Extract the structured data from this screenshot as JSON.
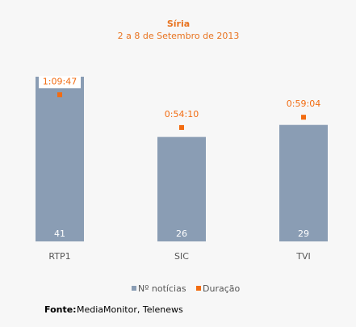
{
  "chart_data": {
    "type": "bar",
    "title": "Síria",
    "subtitle": "2 a 8 de Setembro de  2013",
    "categories": [
      "RTP1",
      "SIC",
      "TVI"
    ],
    "series": [
      {
        "name": "Nº notícias",
        "color": "#8a9db4",
        "values": [
          41,
          26,
          29
        ]
      },
      {
        "name": "Duração",
        "color": "#f26c12",
        "axis": "y2",
        "values": [
          4187,
          3250,
          3544
        ],
        "value_labels": [
          "1:09:47",
          "0:54:10",
          "0:59:04"
        ]
      }
    ],
    "ylim": [
      0,
      41
    ],
    "y2lim": [
      0,
      4700
    ],
    "source_label": "Fonte:",
    "source": "MediaMonitor, Telenews"
  }
}
